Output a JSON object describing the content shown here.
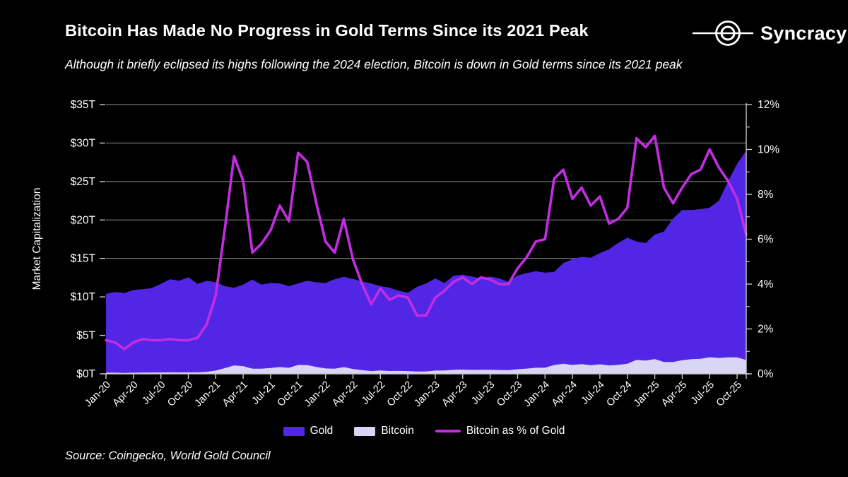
{
  "header": {
    "title": "Bitcoin Has Made No Progress in Gold Terms Since its 2021 Peak",
    "subtitle": "Although it briefly eclipsed its highs following the 2024 election, Bitcoin is down in Gold terms since its 2021 peak",
    "brand": "Syncracy"
  },
  "footer": {
    "source": "Source: Coingecko, World Gold Council"
  },
  "legend": [
    {
      "label": "Gold",
      "color": "#5226e5",
      "type": "area"
    },
    {
      "label": "Bitcoin",
      "color": "#d9d5f4",
      "type": "area"
    },
    {
      "label": "Bitcoin as % of Gold",
      "color": "#c32de2",
      "type": "line"
    }
  ],
  "colors": {
    "background": "#000000",
    "gold_area": "#5226e5",
    "bitcoin_area": "#d9d5f4",
    "pct_line": "#c32de2",
    "gridline": "#8f8f8f",
    "axis": "#c8c8c8",
    "text": "#ffffff"
  },
  "chart_data": {
    "type": "combo-area-line",
    "title": "Bitcoin Has Made No Progress in Gold Terms Since its 2021 Peak",
    "left_axis_label": "Market Capitalization",
    "left_ticks": [
      "$0T",
      "$5T",
      "$10T",
      "$15T",
      "$20T",
      "$25T",
      "$30T",
      "$35T"
    ],
    "right_ticks": [
      "0%",
      "2%",
      "4%",
      "6%",
      "8%",
      "10%",
      "12%"
    ],
    "ylim_left": [
      0,
      35
    ],
    "ylim_right": [
      0,
      12
    ],
    "grid": true,
    "legend_position": "bottom",
    "x_tick_every_months": 3,
    "x": [
      "Jan-20",
      "Feb-20",
      "Mar-20",
      "Apr-20",
      "May-20",
      "Jun-20",
      "Jul-20",
      "Aug-20",
      "Sep-20",
      "Oct-20",
      "Nov-20",
      "Dec-20",
      "Jan-21",
      "Feb-21",
      "Mar-21",
      "Apr-21",
      "May-21",
      "Jun-21",
      "Jul-21",
      "Aug-21",
      "Sep-21",
      "Oct-21",
      "Nov-21",
      "Dec-21",
      "Jan-22",
      "Feb-22",
      "Mar-22",
      "Apr-22",
      "May-22",
      "Jun-22",
      "Jul-22",
      "Aug-22",
      "Sep-22",
      "Oct-22",
      "Nov-22",
      "Dec-22",
      "Jan-23",
      "Feb-23",
      "Mar-23",
      "Apr-23",
      "May-23",
      "Jun-23",
      "Jul-23",
      "Aug-23",
      "Sep-23",
      "Oct-23",
      "Nov-23",
      "Dec-23",
      "Jan-24",
      "Feb-24",
      "Mar-24",
      "Apr-24",
      "May-24",
      "Jun-24",
      "Jul-24",
      "Aug-24",
      "Sep-24",
      "Oct-24",
      "Nov-24",
      "Dec-24",
      "Jan-25",
      "Feb-25",
      "Mar-25",
      "Apr-25",
      "May-25",
      "Jun-25",
      "Jul-25",
      "Aug-25",
      "Sep-25",
      "Oct-25",
      "Nov-25"
    ],
    "series": [
      {
        "name": "Gold",
        "axis": "left",
        "unit": "$T",
        "style": "area",
        "color": "#5226e5",
        "values": [
          10.4,
          10.65,
          10.5,
          10.9,
          11.0,
          11.15,
          11.7,
          12.3,
          12.1,
          12.55,
          11.7,
          12.1,
          11.9,
          11.4,
          11.2,
          11.6,
          12.25,
          11.6,
          11.8,
          11.75,
          11.4,
          11.75,
          12.1,
          11.9,
          11.8,
          12.3,
          12.6,
          12.35,
          12.0,
          11.75,
          11.4,
          11.2,
          10.8,
          10.55,
          11.3,
          11.75,
          12.4,
          11.8,
          12.75,
          12.9,
          12.65,
          12.4,
          12.65,
          12.4,
          11.95,
          12.8,
          13.1,
          13.35,
          13.15,
          13.25,
          14.4,
          14.9,
          15.2,
          15.1,
          15.7,
          16.2,
          17.0,
          17.7,
          17.2,
          17.0,
          18.1,
          18.5,
          20.2,
          21.3,
          21.3,
          21.4,
          21.6,
          22.5,
          25.0,
          27.3,
          29.0
        ]
      },
      {
        "name": "Bitcoin",
        "axis": "left",
        "unit": "$T",
        "style": "area",
        "color": "#d9d5f4",
        "values": [
          0.16,
          0.15,
          0.12,
          0.15,
          0.17,
          0.17,
          0.18,
          0.19,
          0.18,
          0.19,
          0.19,
          0.27,
          0.42,
          0.74,
          1.09,
          1.0,
          0.66,
          0.67,
          0.76,
          0.88,
          0.78,
          1.16,
          1.14,
          0.9,
          0.7,
          0.66,
          0.87,
          0.63,
          0.48,
          0.36,
          0.43,
          0.37,
          0.38,
          0.36,
          0.29,
          0.31,
          0.42,
          0.44,
          0.52,
          0.55,
          0.51,
          0.53,
          0.53,
          0.5,
          0.48,
          0.6,
          0.68,
          0.79,
          0.79,
          1.15,
          1.31,
          1.16,
          1.26,
          1.13,
          1.24,
          1.09,
          1.17,
          1.31,
          1.81,
          1.72,
          1.92,
          1.54,
          1.54,
          1.77,
          1.9,
          1.95,
          2.16,
          2.07,
          2.15,
          2.13,
          1.8
        ]
      },
      {
        "name": "Bitcoin as % of Gold",
        "axis": "right",
        "unit": "%",
        "style": "line",
        "color": "#c32de2",
        "values": [
          1.5,
          1.4,
          1.1,
          1.4,
          1.55,
          1.5,
          1.5,
          1.55,
          1.5,
          1.5,
          1.6,
          2.2,
          3.5,
          6.5,
          9.7,
          8.6,
          5.4,
          5.8,
          6.4,
          7.5,
          6.8,
          9.85,
          9.45,
          7.6,
          5.9,
          5.4,
          6.9,
          5.1,
          4.0,
          3.1,
          3.8,
          3.3,
          3.5,
          3.4,
          2.6,
          2.6,
          3.4,
          3.7,
          4.1,
          4.3,
          4.0,
          4.3,
          4.2,
          4.0,
          4.0,
          4.7,
          5.2,
          5.9,
          6.0,
          8.7,
          9.1,
          7.8,
          8.3,
          7.5,
          7.9,
          6.7,
          6.9,
          7.4,
          10.5,
          10.1,
          10.6,
          8.3,
          7.6,
          8.3,
          8.9,
          9.1,
          10.0,
          9.2,
          8.6,
          7.8,
          6.2
        ]
      }
    ]
  }
}
